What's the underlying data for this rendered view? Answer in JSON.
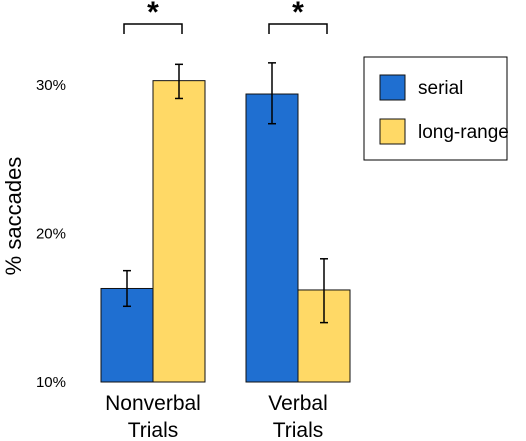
{
  "chart_data": {
    "type": "bar",
    "categories": [
      "Nonverbal Trials",
      "Verbal Trials"
    ],
    "category_lines": [
      [
        "Nonverbal",
        "Trials"
      ],
      [
        "Verbal",
        "Trials"
      ]
    ],
    "series": [
      {
        "name": "serial",
        "color": "#1f6fd1",
        "values": [
          16.3,
          29.4
        ],
        "err_low": [
          15.1,
          27.4
        ],
        "err_high": [
          17.5,
          31.5
        ]
      },
      {
        "name": "long-range",
        "color": "#ffd966",
        "values": [
          30.3,
          16.2
        ],
        "err_low": [
          29.1,
          14.0
        ],
        "err_high": [
          31.4,
          18.3
        ]
      }
    ],
    "ylabel": "% saccades",
    "yticks": [
      {
        "value": 10,
        "label": "10%"
      },
      {
        "value": 20,
        "label": "20%"
      },
      {
        "value": 30,
        "label": "30%"
      }
    ],
    "ylim": [
      10,
      32.5
    ],
    "grid": false,
    "legend_position": "top-right",
    "significance": [
      {
        "category_index": 0,
        "label": "*"
      },
      {
        "category_index": 1,
        "label": "*"
      }
    ]
  }
}
